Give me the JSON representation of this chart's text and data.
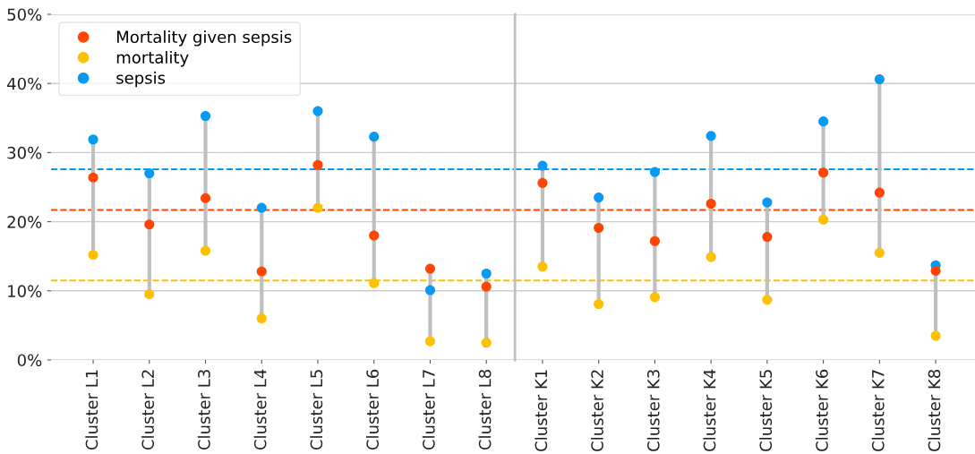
{
  "chart_data": [
    {
      "type": "scatter",
      "categories": [
        "Cluster L1",
        "Cluster L2",
        "Cluster L3",
        "Cluster L4",
        "Cluster L5",
        "Cluster L6",
        "Cluster L7",
        "Cluster L8"
      ],
      "ylim": [
        0,
        50
      ],
      "yticks": [
        {
          "value": 0,
          "label": "0%"
        },
        {
          "value": 10,
          "label": "10%"
        },
        {
          "value": 20,
          "label": "20%"
        },
        {
          "value": 30,
          "label": "30%"
        },
        {
          "value": 40,
          "label": "40%"
        },
        {
          "value": 50,
          "label": "50%"
        }
      ],
      "grid": "y",
      "legend": "top left",
      "marker": "circle",
      "series": [
        {
          "name": "Mortality given sepsis",
          "color": "#ff4500",
          "values": [
            26.4,
            19.6,
            23.4,
            12.8,
            28.2,
            18.0,
            13.2,
            10.6
          ]
        },
        {
          "name": "mortality",
          "color": "#ffc000",
          "values": [
            15.2,
            9.5,
            15.8,
            6.0,
            22.0,
            11.1,
            2.7,
            2.5
          ]
        },
        {
          "name": "sepsis",
          "color": "#069af3",
          "values": [
            31.9,
            27.0,
            35.3,
            22.0,
            36.0,
            32.3,
            10.1,
            12.5
          ]
        }
      ],
      "ref_lines": [
        {
          "axis": "y",
          "value": 27.6,
          "color": "#069af3",
          "line_style": "dashed"
        },
        {
          "axis": "y",
          "value": 21.7,
          "color": "#ff4500",
          "line_style": "dashed"
        },
        {
          "axis": "y",
          "value": 11.5,
          "color": "#ffc000",
          "line_style": "dashed"
        }
      ]
    },
    {
      "type": "scatter",
      "categories": [
        "Cluster K1",
        "Cluster K2",
        "Cluster K3",
        "Cluster K4",
        "Cluster K5",
        "Cluster K6",
        "Cluster K7",
        "Cluster K8"
      ],
      "ylim": [
        0,
        50
      ],
      "yticks": [
        0,
        10,
        20,
        30,
        40,
        50
      ],
      "tick_labels": "x",
      "grid": "y",
      "marker": "circle",
      "series": [
        {
          "color": "#ff4500",
          "values": [
            25.6,
            19.1,
            17.2,
            22.6,
            17.8,
            27.1,
            24.2,
            12.9
          ]
        },
        {
          "color": "#ffc000",
          "values": [
            13.5,
            8.1,
            9.1,
            14.9,
            8.7,
            20.3,
            15.5,
            3.5
          ]
        },
        {
          "color": "#069af3",
          "values": [
            28.1,
            23.5,
            27.2,
            32.4,
            22.8,
            34.5,
            40.6,
            13.7
          ]
        }
      ],
      "ref_lines": [
        {
          "axis": "y",
          "value": 27.6,
          "color": "#069af3",
          "line_style": "dashed"
        },
        {
          "axis": "y",
          "value": 21.7,
          "color": "#ff4500",
          "line_style": "dashed"
        },
        {
          "axis": "y",
          "value": 11.5,
          "color": "#ffc000",
          "line_style": "dashed"
        }
      ]
    }
  ]
}
